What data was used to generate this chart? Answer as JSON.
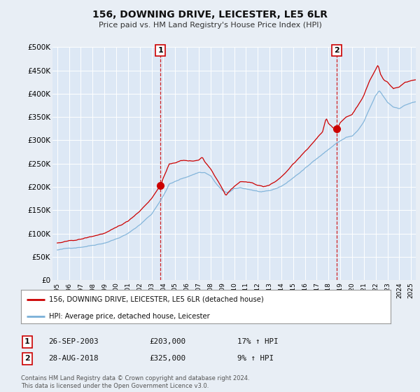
{
  "title": "156, DOWNING DRIVE, LEICESTER, LE5 6LR",
  "subtitle": "Price paid vs. HM Land Registry's House Price Index (HPI)",
  "bg_color": "#e8eef5",
  "plot_bg_color": "#dde8f5",
  "grid_color": "#ffffff",
  "red_line_color": "#cc0000",
  "blue_line_color": "#7ab0d8",
  "purchase1_date_x": 2003.75,
  "purchase1_price": 203000,
  "purchase2_date_x": 2018.67,
  "purchase2_price": 325000,
  "dashed_color": "#cc0000",
  "legend_entry1": "156, DOWNING DRIVE, LEICESTER, LE5 6LR (detached house)",
  "legend_entry2": "HPI: Average price, detached house, Leicester",
  "table_row1": [
    "1",
    "26-SEP-2003",
    "£203,000",
    "17% ↑ HPI"
  ],
  "table_row2": [
    "2",
    "28-AUG-2018",
    "£325,000",
    "9% ↑ HPI"
  ],
  "footnote": "Contains HM Land Registry data © Crown copyright and database right 2024.\nThis data is licensed under the Open Government Licence v3.0.",
  "ylim": [
    0,
    500000
  ],
  "yticks": [
    0,
    50000,
    100000,
    150000,
    200000,
    250000,
    300000,
    350000,
    400000,
    450000,
    500000
  ],
  "xmin": 1994.6,
  "xmax": 2025.4
}
